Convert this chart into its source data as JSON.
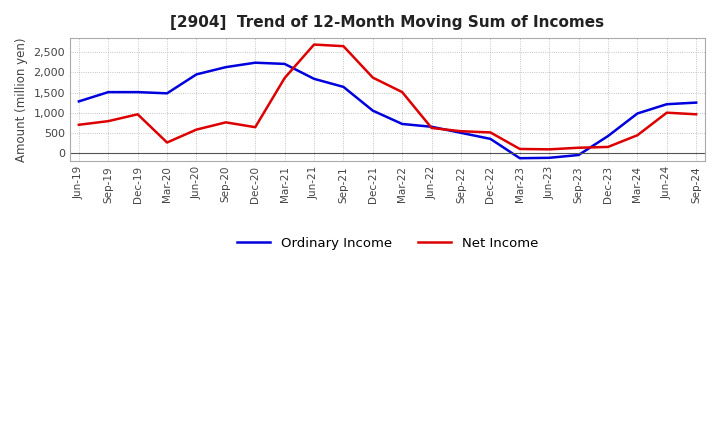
{
  "title": "[2904]  Trend of 12-Month Moving Sum of Incomes",
  "ylabel": "Amount (million yen)",
  "background_color": "#ffffff",
  "plot_bg_color": "#ffffff",
  "grid_color": "#aaaaaa",
  "ordinary_income_color": "#0000dd",
  "net_income_color": "#dd0000",
  "line_width": 1.8,
  "labels": [
    "Jun-19",
    "Sep-19",
    "Dec-19",
    "Mar-20",
    "Jun-20",
    "Sep-20",
    "Dec-20",
    "Mar-21",
    "Jun-21",
    "Sep-21",
    "Dec-21",
    "Mar-22",
    "Jun-22",
    "Sep-22",
    "Dec-22",
    "Mar-23",
    "Jun-23",
    "Sep-23",
    "Dec-23",
    "Mar-24",
    "Jun-24",
    "Sep-24"
  ],
  "ordinary_income": [
    1280,
    1510,
    1510,
    1480,
    1950,
    2130,
    2240,
    2210,
    1840,
    1640,
    1050,
    720,
    650,
    500,
    350,
    -130,
    -120,
    -50,
    420,
    980,
    1210,
    1250
  ],
  "net_income": [
    700,
    790,
    960,
    260,
    580,
    760,
    640,
    1860,
    2690,
    2650,
    1870,
    1510,
    620,
    540,
    510,
    100,
    90,
    130,
    150,
    440,
    1000,
    960
  ],
  "ylim": [
    -200,
    2850
  ],
  "yticks": [
    0,
    500,
    1000,
    1500,
    2000,
    2500
  ],
  "legend_labels": [
    "Ordinary Income",
    "Net Income"
  ],
  "figsize": [
    7.2,
    4.4
  ],
  "dpi": 100
}
